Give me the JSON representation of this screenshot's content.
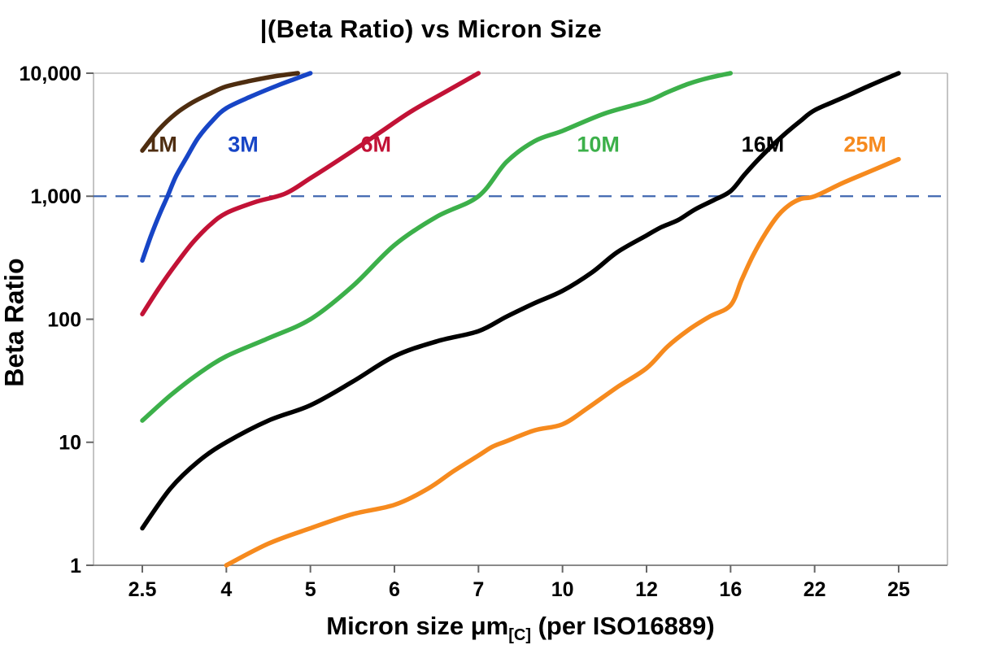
{
  "title": "|(Beta Ratio) vs Micron Size",
  "chart_data": {
    "type": "line",
    "x_scale": "point",
    "y_scale": "log",
    "ylim": [
      1,
      10000
    ],
    "grid": false,
    "legend_position": "inline-labels",
    "x_ticks": [
      "2.5",
      "4",
      "5",
      "6",
      "7",
      "10",
      "12",
      "16",
      "22",
      "25"
    ],
    "y_ticks": [
      "1",
      "10",
      "100",
      "1,000",
      "10,000"
    ],
    "xlabel": {
      "main": "Micron size μm",
      "sub": "[C]",
      "rest": " (per ISO16889)"
    },
    "ylabel": "Beta Ratio",
    "reference_line": {
      "y": 1000,
      "style": "dashed",
      "color": "#4068b0"
    },
    "axis_color": "#b5b5b5",
    "tick_color": "#666666",
    "series": [
      {
        "name": "1M",
        "color": "#4e2d10",
        "label": {
          "text": "1M",
          "x": 2.85,
          "y": 2300
        },
        "points": [
          [
            2.5,
            2350
          ],
          [
            2.8,
            3500
          ],
          [
            3.1,
            4700
          ],
          [
            3.4,
            5800
          ],
          [
            3.7,
            6800
          ],
          [
            4.0,
            7800
          ],
          [
            4.3,
            8700
          ],
          [
            4.6,
            9500
          ],
          [
            4.85,
            10000
          ]
        ]
      },
      {
        "name": "3M",
        "color": "#1745c6",
        "label": {
          "text": "3M",
          "x": 4.2,
          "y": 2300
        },
        "points": [
          [
            2.5,
            300
          ],
          [
            2.65,
            470
          ],
          [
            2.8,
            700
          ],
          [
            2.95,
            1000
          ],
          [
            3.1,
            1450
          ],
          [
            3.3,
            2100
          ],
          [
            3.5,
            3000
          ],
          [
            3.75,
            4100
          ],
          [
            4.0,
            5200
          ],
          [
            4.3,
            6500
          ],
          [
            4.6,
            7900
          ],
          [
            4.8,
            8900
          ],
          [
            5.0,
            10000
          ]
        ]
      },
      {
        "name": "6M",
        "color": "#c21236",
        "label": {
          "text": "6M",
          "x": 5.78,
          "y": 2300
        },
        "points": [
          [
            2.5,
            110
          ],
          [
            2.8,
            180
          ],
          [
            3.1,
            280
          ],
          [
            3.4,
            420
          ],
          [
            3.7,
            580
          ],
          [
            4.0,
            730
          ],
          [
            4.35,
            900
          ],
          [
            4.7,
            1050
          ],
          [
            5.0,
            1400
          ],
          [
            5.4,
            2100
          ],
          [
            5.8,
            3200
          ],
          [
            6.2,
            4900
          ],
          [
            6.6,
            7000
          ],
          [
            7.0,
            10000
          ]
        ]
      },
      {
        "name": "10M",
        "color": "#3cb04a",
        "label": {
          "text": "10M",
          "x": 10.85,
          "y": 2300
        },
        "points": [
          [
            2.5,
            15
          ],
          [
            3.0,
            24
          ],
          [
            3.5,
            36
          ],
          [
            4.0,
            50
          ],
          [
            4.5,
            70
          ],
          [
            5.0,
            100
          ],
          [
            5.5,
            185
          ],
          [
            6.0,
            400
          ],
          [
            6.5,
            680
          ],
          [
            7.0,
            1000
          ],
          [
            8.0,
            1900
          ],
          [
            9.0,
            2800
          ],
          [
            10.0,
            3400
          ],
          [
            11.0,
            4700
          ],
          [
            12.0,
            5900
          ],
          [
            13.0,
            7000
          ],
          [
            14.0,
            8200
          ],
          [
            15.0,
            9200
          ],
          [
            16.0,
            10000
          ]
        ]
      },
      {
        "name": "16M",
        "color": "#000000",
        "label": {
          "text": "16M",
          "x": 18.3,
          "y": 2300
        },
        "points": [
          [
            2.5,
            2
          ],
          [
            3.0,
            4.2
          ],
          [
            3.5,
            7
          ],
          [
            4.0,
            10
          ],
          [
            4.5,
            15
          ],
          [
            5.0,
            20
          ],
          [
            5.5,
            31
          ],
          [
            6.0,
            50
          ],
          [
            6.5,
            66
          ],
          [
            7.0,
            80
          ],
          [
            8.0,
            105
          ],
          [
            9.0,
            135
          ],
          [
            10.0,
            170
          ],
          [
            10.7,
            240
          ],
          [
            11.3,
            350
          ],
          [
            12.0,
            480
          ],
          [
            12.7,
            560
          ],
          [
            13.5,
            640
          ],
          [
            14.3,
            780
          ],
          [
            15.2,
            930
          ],
          [
            16.0,
            1100
          ],
          [
            17.0,
            1500
          ],
          [
            18.0,
            2000
          ],
          [
            19.0,
            2600
          ],
          [
            20.0,
            3300
          ],
          [
            21.0,
            4100
          ],
          [
            22.0,
            5000
          ],
          [
            23.0,
            6300
          ],
          [
            24.0,
            8000
          ],
          [
            25.0,
            10000
          ]
        ]
      },
      {
        "name": "25M",
        "color": "#f68a1e",
        "label": {
          "text": "25M",
          "x": 23.8,
          "y": 2300
        },
        "points": [
          [
            4.0,
            1
          ],
          [
            4.5,
            1.5
          ],
          [
            5.0,
            2
          ],
          [
            5.5,
            2.6
          ],
          [
            6.0,
            3.1
          ],
          [
            6.4,
            4.2
          ],
          [
            6.7,
            5.8
          ],
          [
            7.0,
            7.8
          ],
          [
            7.5,
            9.2
          ],
          [
            8.0,
            10.2
          ],
          [
            9.0,
            12.5
          ],
          [
            10.0,
            14
          ],
          [
            10.6,
            19
          ],
          [
            11.3,
            28
          ],
          [
            12.0,
            40
          ],
          [
            13.0,
            60
          ],
          [
            14.0,
            82
          ],
          [
            15.0,
            105
          ],
          [
            16.0,
            130
          ],
          [
            16.8,
            210
          ],
          [
            17.6,
            330
          ],
          [
            18.5,
            500
          ],
          [
            19.4,
            700
          ],
          [
            20.2,
            850
          ],
          [
            21.0,
            950
          ],
          [
            22.0,
            1000
          ],
          [
            23.0,
            1280
          ],
          [
            24.0,
            1600
          ],
          [
            25.0,
            2000
          ]
        ]
      }
    ]
  }
}
